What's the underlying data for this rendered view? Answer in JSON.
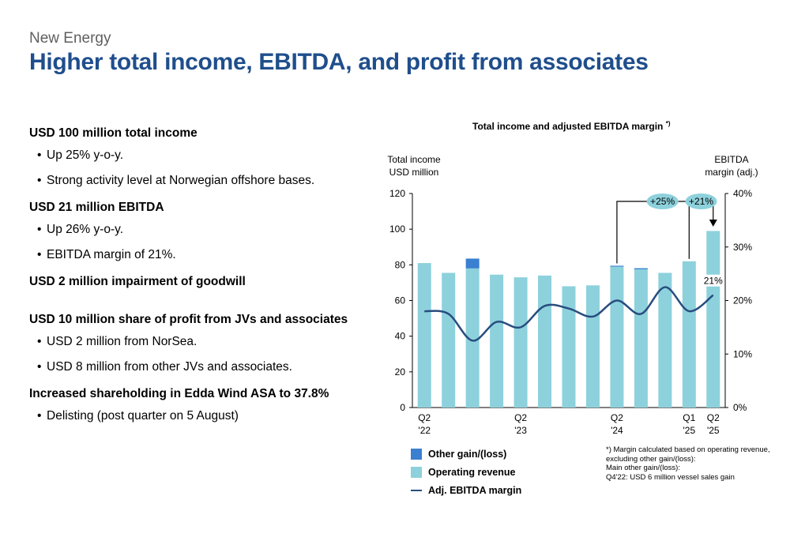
{
  "header": {
    "kicker": "New Energy",
    "title": "Higher total income, EBITDA, and profit from associates"
  },
  "sections": [
    {
      "heading": "USD 100 million total income",
      "bullets": [
        "Up 25% y-o-y.",
        "Strong activity level at Norwegian offshore bases."
      ]
    },
    {
      "heading": "USD 21 million EBITDA",
      "bullets": [
        "Up 26% y-o-y.",
        "EBITDA margin of 21%."
      ]
    },
    {
      "heading": "USD 2 million impairment of goodwill",
      "bullets": []
    },
    {
      "heading": "USD 10 million share of profit from JVs and associates",
      "bullets": [
        "USD 2 million from NorSea.",
        "USD 8 million from other JVs and associates."
      ]
    },
    {
      "heading": "Increased shareholding in Edda Wind ASA to 37.8%",
      "bullets": [
        "Delisting (post quarter on 5 August)"
      ]
    }
  ],
  "colors": {
    "title": "#1f4e8c",
    "operating": "#8dd1dc",
    "other": "#3a7fd0",
    "line": "#284d7e"
  },
  "chart_data": {
    "type": "bar",
    "title": "Total income and adjusted EBITDA margin",
    "title_marker": "*)",
    "left_axis_label": [
      "Total income",
      "USD million"
    ],
    "right_axis_label": [
      "EBITDA",
      "margin (adj.)"
    ],
    "ylim_left": [
      0,
      120
    ],
    "left_ticks": [
      "0",
      "20",
      "40",
      "60",
      "80",
      "100",
      "120"
    ],
    "ylim_right": [
      0,
      40
    ],
    "right_ticks": [
      "0%",
      "10%",
      "20%",
      "30%",
      "40%"
    ],
    "categories": [
      "Q2 '22",
      "Q3 '22",
      "Q4 '22",
      "Q1 '23",
      "Q2 '23",
      "Q3 '23",
      "Q4 '23",
      "Q1 '24",
      "Q2 '24",
      "Q3 '24",
      "Q4 '24",
      "Q1 '25",
      "Q2 '25"
    ],
    "x_tick_labels": [
      {
        "index": 0,
        "lines": [
          "Q2",
          "'22"
        ]
      },
      {
        "index": 4,
        "lines": [
          "Q2",
          "'23"
        ]
      },
      {
        "index": 8,
        "lines": [
          "Q2",
          "'24"
        ]
      },
      {
        "index": 11,
        "lines": [
          "Q1",
          "'25"
        ]
      },
      {
        "index": 12,
        "lines": [
          "Q2",
          "'25"
        ]
      }
    ],
    "series": [
      {
        "name": "Operating revenue",
        "values": [
          81,
          75.5,
          78,
          74.5,
          73,
          74,
          68,
          68.5,
          79,
          77.5,
          75.5,
          82,
          99
        ]
      },
      {
        "name": "Other gain/(loss)",
        "values": [
          0,
          0,
          5.5,
          0,
          0,
          0,
          0,
          0,
          0.5,
          0.6,
          0,
          0,
          0
        ]
      },
      {
        "name": "Adj. EBITDA margin",
        "values": [
          18,
          17.5,
          12.5,
          16,
          15,
          19,
          18.5,
          17,
          20,
          17.5,
          22.5,
          18,
          21
        ]
      }
    ],
    "data_label": {
      "index": 12,
      "text": "21%"
    },
    "growth_callouts": [
      {
        "text": "+25%",
        "from_index": 8,
        "to_index": 12
      },
      {
        "text": "+21%",
        "from_index": 11,
        "to_index": 12
      }
    ],
    "legend": [
      "Other gain/(loss)",
      "Operating revenue",
      "Adj. EBITDA margin"
    ],
    "footnote": [
      "*) Margin calculated based on operating revenue,",
      "excluding other gain/(loss):",
      "Main other gain/(loss):",
      "Q4'22: USD 6 million vessel sales gain"
    ]
  }
}
